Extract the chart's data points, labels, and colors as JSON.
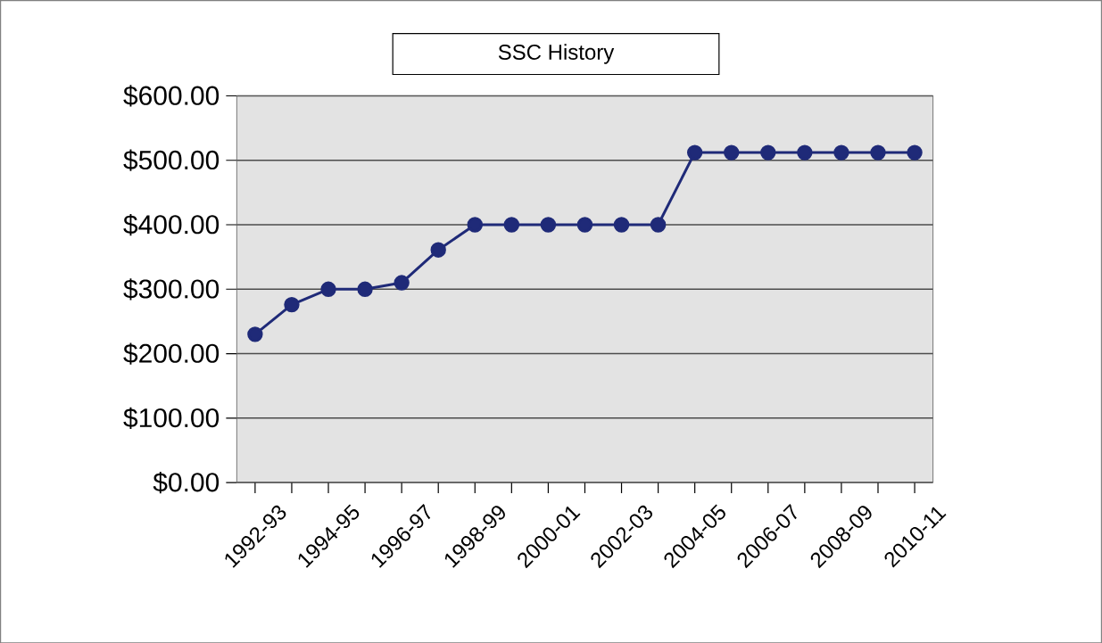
{
  "chart_data": {
    "type": "line",
    "title": "SSC History",
    "categories": [
      "1992-93",
      null,
      "1994-95",
      null,
      "1996-97",
      null,
      "1998-99",
      null,
      "2000-01",
      null,
      "2002-03",
      null,
      "2004-05",
      null,
      "2006-07",
      null,
      "2008-09",
      null,
      "2010-11"
    ],
    "series": [
      {
        "color": "#1f2a78",
        "values": [
          230,
          276,
          300,
          300,
          310,
          361,
          400,
          400,
          400,
          400,
          400,
          400,
          512,
          512,
          512,
          512,
          512,
          512,
          512
        ]
      }
    ],
    "ylim": [
      0,
      600
    ],
    "yticks": [
      {
        "value": 0,
        "label": "$0.00"
      },
      {
        "value": 100,
        "label": "$100.00"
      },
      {
        "value": 200,
        "label": "$200.00"
      },
      {
        "value": 300,
        "label": "$300.00"
      },
      {
        "value": 400,
        "label": "$400.00"
      },
      {
        "value": 500,
        "label": "$500.00"
      },
      {
        "value": 600,
        "label": "$600.00"
      }
    ],
    "grid": "y",
    "marker": "circle",
    "line_style": "solid"
  }
}
